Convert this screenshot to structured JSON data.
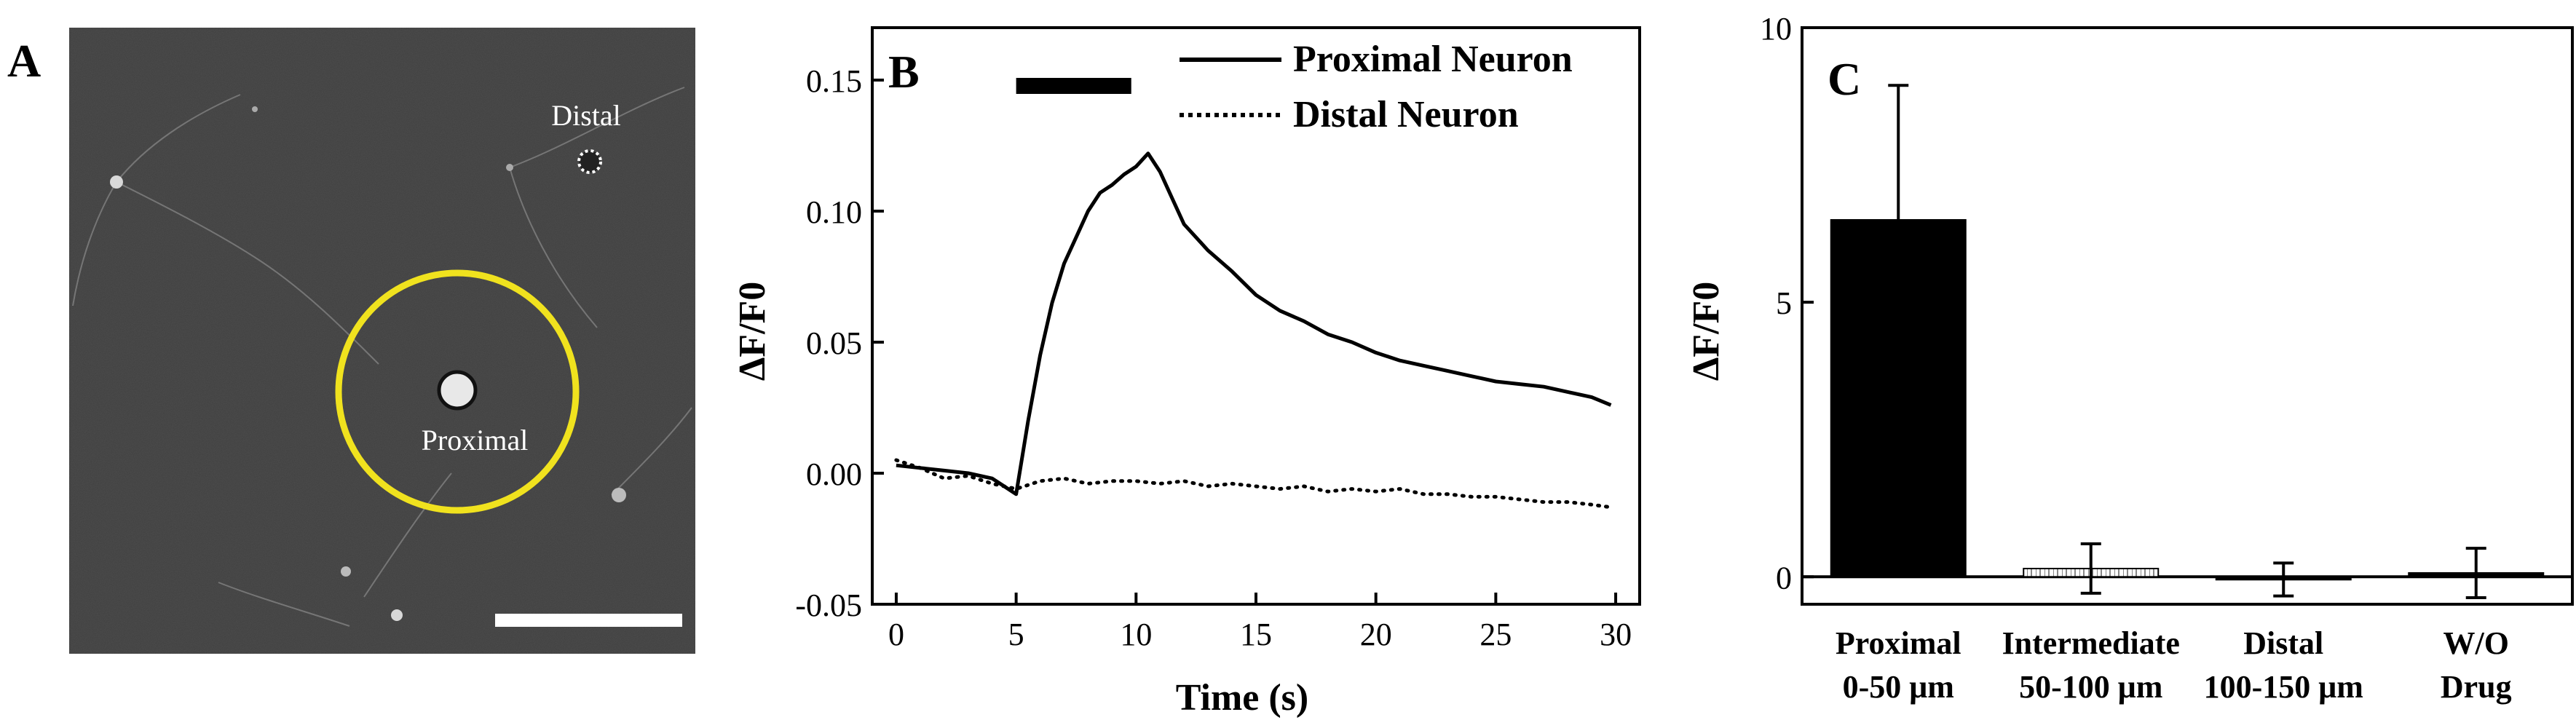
{
  "panels": {
    "A": {
      "letter": "A",
      "labels": {
        "distal": "Distal",
        "proximal": "Proximal"
      },
      "colors": {
        "background": "#3f3f3f",
        "ring": "#f0e21e",
        "scale_bar": "#ffffff"
      }
    },
    "B": {
      "letter": "B"
    },
    "C": {
      "letter": "C"
    }
  },
  "chart_data": [
    {
      "panel": "B",
      "type": "line",
      "xlabel": "Time (s)",
      "ylabel": "ΔF/F0",
      "xlim": [
        -1,
        31
      ],
      "ylim": [
        -0.05,
        0.17
      ],
      "xticks": [
        0,
        5,
        10,
        15,
        20,
        25,
        30
      ],
      "xtick_labels": [
        "0",
        "5",
        "10",
        "15",
        "20",
        "25",
        "30"
      ],
      "yticks": [
        -0.05,
        0.0,
        0.05,
        0.1,
        0.15
      ],
      "ytick_labels": [
        "-0.05",
        "0.00",
        "0.05",
        "0.10",
        "0.15"
      ],
      "stimulus_bar": [
        5,
        9.8
      ],
      "legend": "top-right",
      "series": [
        {
          "name": "Proximal Neuron",
          "style": "solid",
          "x": [
            0,
            1,
            2,
            3,
            4,
            4.5,
            5,
            5.5,
            6,
            6.5,
            7,
            7.5,
            8,
            8.5,
            9,
            9.5,
            10,
            10.5,
            11,
            11.5,
            12,
            13,
            14,
            15,
            16,
            17,
            18,
            19,
            20,
            21,
            22,
            23,
            24,
            25,
            26,
            27,
            28,
            29,
            29.8
          ],
          "y": [
            0.003,
            0.002,
            0.001,
            0.0,
            -0.002,
            -0.005,
            -0.008,
            0.02,
            0.045,
            0.065,
            0.08,
            0.09,
            0.1,
            0.107,
            0.11,
            0.114,
            0.117,
            0.122,
            0.115,
            0.105,
            0.095,
            0.085,
            0.077,
            0.068,
            0.062,
            0.058,
            0.053,
            0.05,
            0.046,
            0.043,
            0.041,
            0.039,
            0.037,
            0.035,
            0.034,
            0.033,
            0.031,
            0.029,
            0.026
          ]
        },
        {
          "name": "Distal Neuron",
          "style": "dotted",
          "x": [
            0,
            1,
            2,
            3,
            4,
            5,
            6,
            7,
            8,
            9,
            10,
            11,
            12,
            13,
            14,
            15,
            16,
            17,
            18,
            19,
            20,
            21,
            22,
            23,
            24,
            25,
            26,
            27,
            28,
            29,
            29.8
          ],
          "y": [
            0.005,
            0.002,
            -0.002,
            -0.001,
            -0.004,
            -0.006,
            -0.003,
            -0.002,
            -0.004,
            -0.003,
            -0.003,
            -0.004,
            -0.003,
            -0.005,
            -0.004,
            -0.005,
            -0.006,
            -0.005,
            -0.007,
            -0.006,
            -0.007,
            -0.006,
            -0.008,
            -0.008,
            -0.009,
            -0.009,
            -0.01,
            -0.011,
            -0.011,
            -0.012,
            -0.013
          ]
        }
      ]
    },
    {
      "panel": "C",
      "type": "bar",
      "ylabel": "ΔF/F0",
      "ylim": [
        -0.5,
        10
      ],
      "yticks": [
        0,
        5,
        10
      ],
      "ytick_labels": [
        "0",
        "5",
        "10"
      ],
      "categories": [
        [
          "Proximal",
          "0-50 μm"
        ],
        [
          "Intermediate",
          "50-100 μm"
        ],
        [
          "Distal",
          "100-150 μm"
        ],
        [
          "W/O",
          "Drug"
        ]
      ],
      "values": [
        6.5,
        0.15,
        -0.05,
        0.07
      ],
      "errors": [
        2.45,
        0.45,
        0.3,
        0.45
      ],
      "fills": [
        "solid",
        "hatched",
        "solid",
        "solid"
      ]
    }
  ]
}
